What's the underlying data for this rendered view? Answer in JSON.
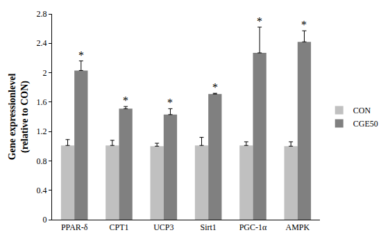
{
  "chart_data": {
    "type": "bar",
    "categories": [
      "PPAR-δ",
      "CPT1",
      "UCP3",
      "Sirt1",
      "PGC-1α",
      "AMPK"
    ],
    "series": [
      {
        "name": "CON",
        "color": "#c0c0c0",
        "values": [
          1.01,
          1.01,
          1.0,
          1.01,
          1.01,
          1.0
        ],
        "errors": [
          0.08,
          0.07,
          0.04,
          0.11,
          0.05,
          0.06
        ]
      },
      {
        "name": "CGE50",
        "color": "#808080",
        "values": [
          2.03,
          1.51,
          1.43,
          1.71,
          2.27,
          2.42
        ],
        "errors": [
          0.13,
          0.03,
          0.08,
          0.01,
          0.35,
          0.15
        ]
      }
    ],
    "y_label": [
      "Gene expressionlevel",
      "(relative to CON)"
    ],
    "ylim": [
      0,
      2.8
    ],
    "yticks": [
      0,
      0.4,
      0.8,
      1.2,
      1.6,
      2,
      2.4,
      2.8
    ],
    "grid": false,
    "legend": "right",
    "annotations": [
      {
        "category": "PPAR-δ",
        "series": "CGE50",
        "text": "*"
      },
      {
        "category": "CPT1",
        "series": "CGE50",
        "text": "*"
      },
      {
        "category": "UCP3",
        "series": "CGE50",
        "text": "*"
      },
      {
        "category": "Sirt1",
        "series": "CGE50",
        "text": "*"
      },
      {
        "category": "PGC-1α",
        "series": "CGE50",
        "text": "*"
      },
      {
        "category": "AMPK",
        "series": "CGE50",
        "text": "*"
      }
    ]
  }
}
